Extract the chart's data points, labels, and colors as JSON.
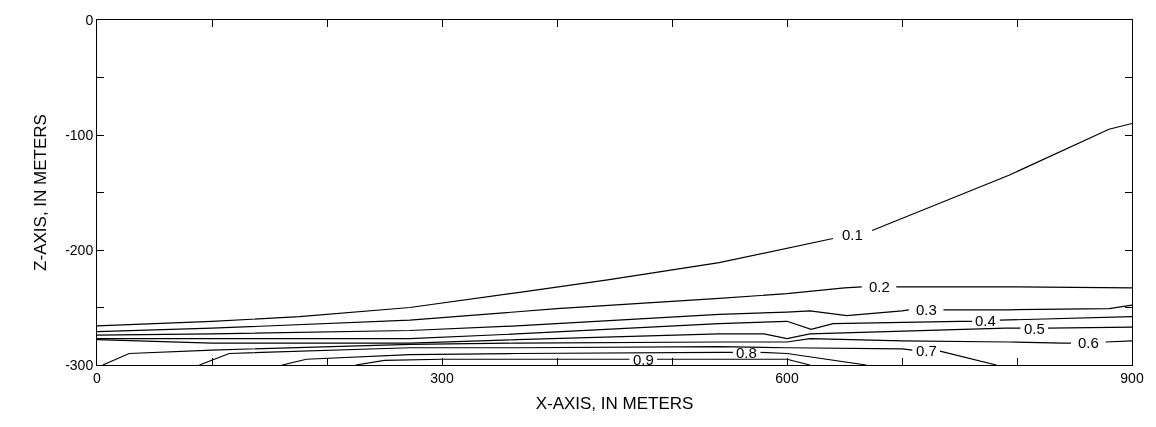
{
  "chart_data": {
    "type": "line",
    "xlabel": "X-AXIS, IN METERS",
    "ylabel": "Z-AXIS, IN METERS",
    "xlim": [
      0,
      900
    ],
    "ylim": [
      -300,
      0
    ],
    "xticks": [
      0,
      {
        "value": 100,
        "label": null
      },
      {
        "value": 200,
        "label": null
      },
      300,
      {
        "value": 400,
        "label": null
      },
      {
        "value": 500,
        "label": null
      },
      600,
      {
        "value": 700,
        "label": null
      },
      {
        "value": 800,
        "label": null
      },
      900
    ],
    "yticks": [
      -300,
      {
        "value": -250,
        "label": null
      },
      -200,
      {
        "value": -150,
        "label": null
      },
      -100,
      {
        "value": -50,
        "label": null
      },
      0
    ],
    "grid": false,
    "legend": false,
    "marker": "none",
    "line_style": "solid",
    "series": [
      {
        "name": "0.1",
        "color": "#000000",
        "x": [
          0,
          100,
          176,
          272,
          366,
          444,
          541,
          640,
          657,
          674,
          793,
          880,
          900
        ],
        "values": [
          -266,
          -262,
          -258,
          -250,
          -237,
          -226,
          -211,
          -190,
          null,
          -183,
          -135,
          -95,
          -90
        ]
      },
      {
        "name": "0.2",
        "color": "#000000",
        "x": [
          0,
          100,
          272,
          400,
          541,
          600,
          650,
          665,
          680,
          695,
          793,
          900
        ],
        "values": [
          -271,
          -268,
          -261,
          -251,
          -242,
          -238,
          -233,
          -232,
          null,
          -232,
          -232,
          -233
        ]
      },
      {
        "name": "0.3",
        "color": "#000000",
        "x": [
          0,
          100,
          272,
          365,
          541,
          600,
          620,
          652,
          700,
          706,
          721,
          736,
          793,
          880,
          900
        ],
        "values": [
          -274,
          -273,
          -270,
          -266,
          -256,
          -254,
          -253,
          -257,
          -253,
          -252,
          null,
          -252,
          -252,
          -251,
          -248
        ]
      },
      {
        "name": "0.4",
        "color": "#000000",
        "x": [
          0,
          272,
          365,
          541,
          600,
          621,
          640,
          750,
          761,
          773,
          785,
          900
        ],
        "values": [
          -277,
          -277,
          -273,
          -264,
          -262,
          -269,
          -264,
          -262,
          -262,
          null,
          -261,
          -258
        ]
      },
      {
        "name": "0.5",
        "color": "#000000",
        "x": [
          0,
          100,
          272,
          365,
          541,
          580,
          600,
          620,
          790,
          803,
          815,
          827,
          900
        ],
        "values": [
          -278,
          -281,
          -281,
          -278,
          -273,
          -273,
          -277,
          -273,
          -268,
          -268,
          null,
          -268,
          -267
        ]
      },
      {
        "name": "0.6",
        "color": "#000000",
        "x": [
          5,
          28,
          100,
          272,
          365,
          541,
          600,
          620,
          700,
          793,
          840,
          847,
          862,
          877,
          900
        ],
        "values": [
          -300,
          -290,
          -287,
          -282,
          -281,
          -280,
          -280,
          -277,
          -279,
          -280,
          -281,
          -281,
          null,
          -280,
          -279
        ]
      },
      {
        "name": "0.7",
        "color": "#000000",
        "x": [
          89,
          115,
          272,
          365,
          541,
          600,
          700,
          709,
          721,
          733,
          782
        ],
        "values": [
          -300,
          -290,
          -285,
          -285,
          -284,
          -285,
          -286,
          -287,
          null,
          -288,
          -300
        ]
      },
      {
        "name": "0.8",
        "color": "#000000",
        "x": [
          161,
          182,
          272,
          365,
          541,
          553,
          565,
          577,
          600,
          669
        ],
        "values": [
          -300,
          -295,
          -291,
          -290,
          -289,
          -289,
          null,
          -289,
          -290,
          -300
        ]
      },
      {
        "name": "0.9",
        "color": "#000000",
        "x": [
          225,
          250,
          300,
          450,
          463,
          475,
          487,
          580,
          600,
          620
        ],
        "values": [
          -300,
          -296,
          -295,
          -295,
          -295,
          null,
          -295,
          -295,
          -295,
          -300
        ]
      }
    ]
  }
}
